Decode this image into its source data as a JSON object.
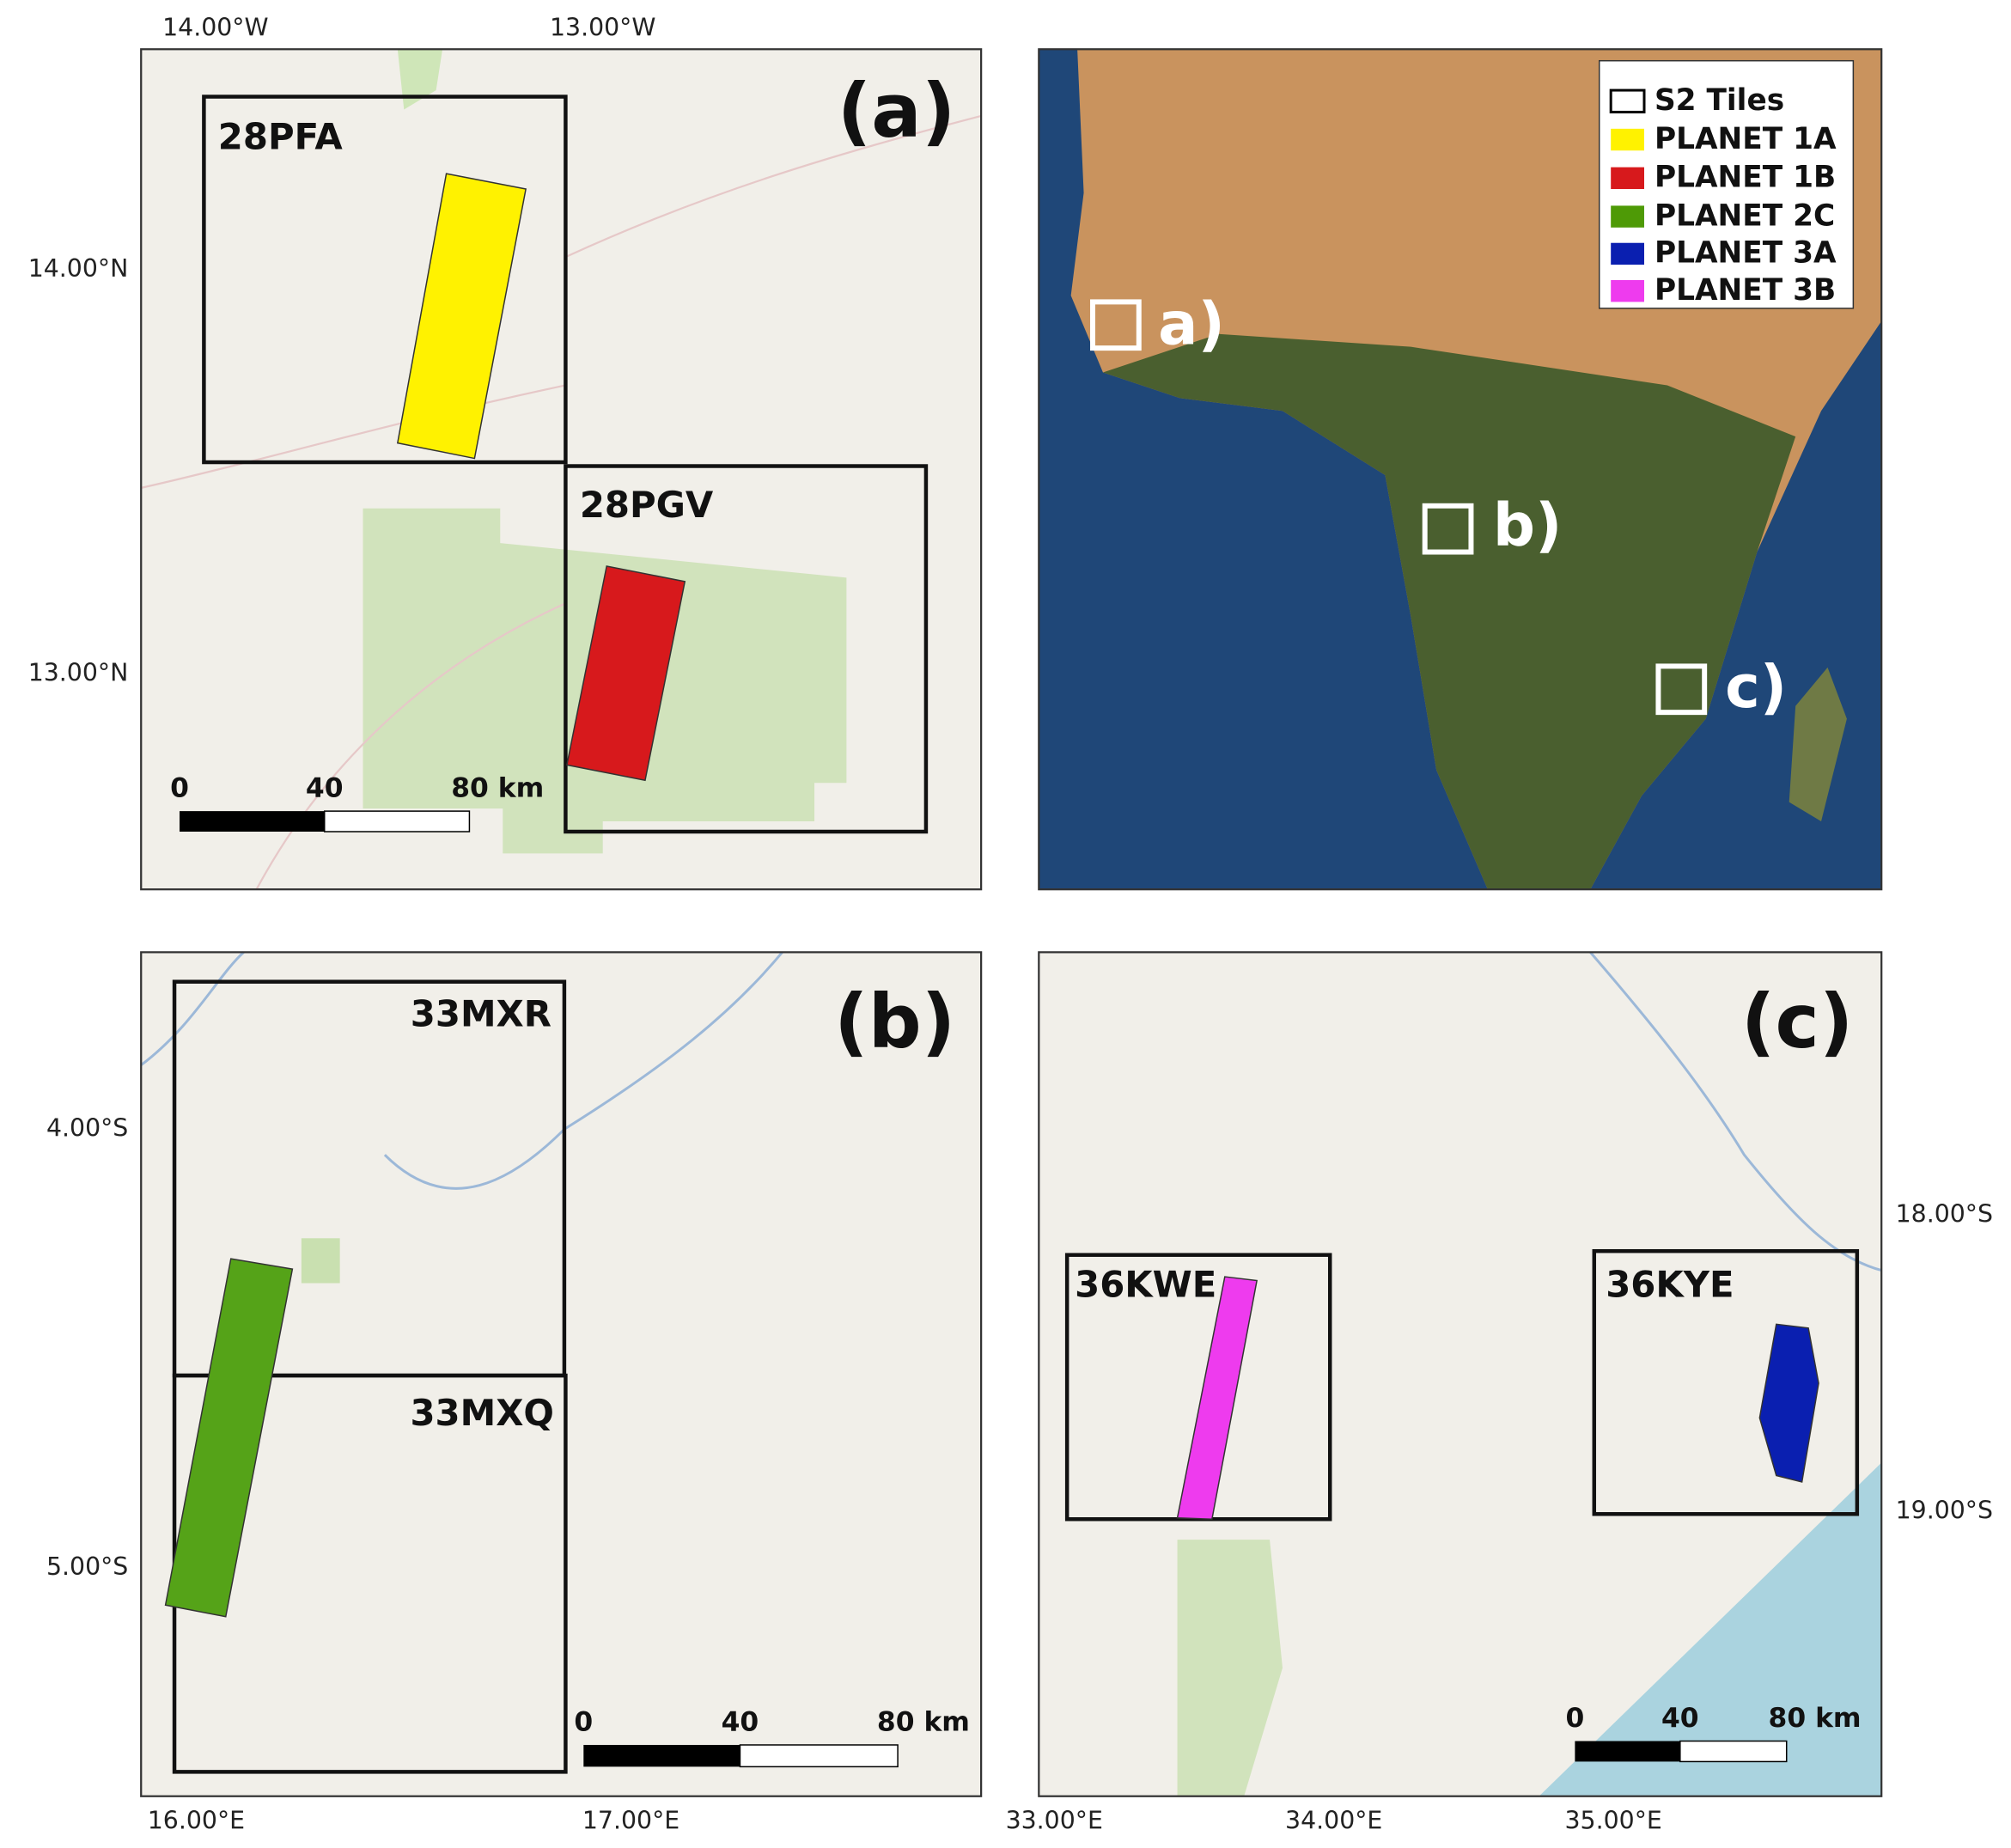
{
  "panels": [
    {
      "label": "(a)",
      "x_labels": [
        "14.00°W",
        "13.00°W"
      ],
      "y_labels": [
        "14.00°N",
        "13.00°N"
      ],
      "tiles": [
        "28PFA",
        "28PGV"
      ],
      "scale_bar": [
        "0",
        "40",
        "80 km"
      ]
    },
    {
      "label": "(b)",
      "x_labels": [
        "16.00°E",
        "17.00°E"
      ],
      "y_labels": [
        "4.00°S",
        "5.00°S"
      ],
      "tiles": [
        "33MXR",
        "33MXQ"
      ],
      "scale_bar": [
        "0",
        "40",
        "80 km"
      ]
    },
    {
      "label": "(c)",
      "x_labels": [
        "33.00°E",
        "34.00°E",
        "35.00°E"
      ],
      "y_labels": [
        "18.00°S",
        "19.00°S"
      ],
      "tiles": [
        "36KWE",
        "36KYE"
      ],
      "scale_bar": [
        "0",
        "40",
        "80 km"
      ]
    }
  ],
  "overview": {
    "legend": [
      "S2 Tiles",
      "PLANET 1A",
      "PLANET 1B",
      "PLANET 2C",
      "PLANET 3A",
      "PLANET 3B"
    ],
    "markers": [
      "a)",
      "b)",
      "c)"
    ]
  }
}
